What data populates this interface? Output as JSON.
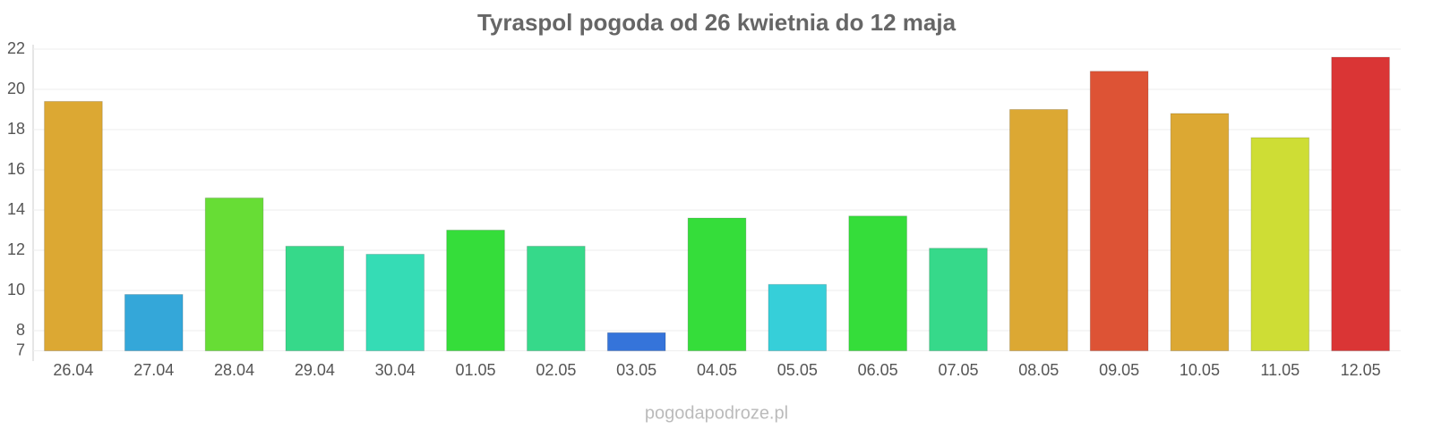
{
  "chart_data": {
    "type": "bar",
    "title": "Tyraspol pogoda od 26 kwietnia do 12 maja",
    "categories": [
      "26.04",
      "27.04",
      "28.04",
      "29.04",
      "30.04",
      "01.05",
      "02.05",
      "03.05",
      "04.05",
      "05.05",
      "06.05",
      "07.05",
      "08.05",
      "09.05",
      "10.05",
      "11.05",
      "12.05"
    ],
    "values": [
      19.4,
      9.8,
      14.6,
      12.2,
      11.8,
      13.0,
      12.2,
      7.9,
      13.6,
      10.3,
      13.7,
      12.1,
      19.0,
      20.9,
      18.8,
      17.6,
      21.6
    ],
    "colors": [
      "#dca833",
      "#34a7d9",
      "#67dd35",
      "#36d98a",
      "#35dcb5",
      "#35dd3a",
      "#36d98a",
      "#3574da",
      "#35dd3a",
      "#36cfd9",
      "#35dd3a",
      "#36d98a",
      "#dca833",
      "#dd5335",
      "#dca833",
      "#cedd35",
      "#da3535"
    ],
    "ylim": [
      7,
      22
    ],
    "yticks": [
      7,
      8,
      10,
      12,
      14,
      16,
      18,
      20,
      22
    ],
    "grid": true,
    "source": "pogodapodroze.pl"
  }
}
